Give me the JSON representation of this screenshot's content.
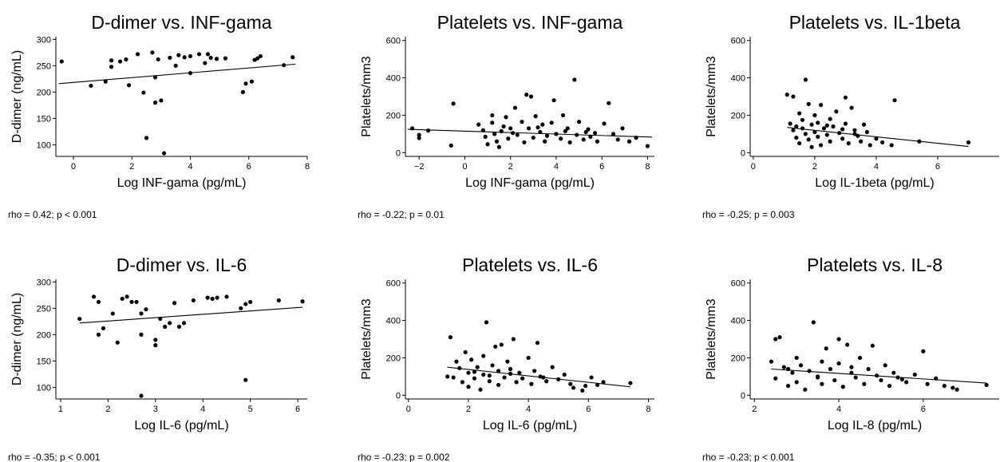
{
  "chart_data": [
    {
      "type": "scatter",
      "title": "D-dimer vs. INF-gama",
      "xlabel": "Log INF-gama (pg/mL)",
      "ylabel": "D-dimer (ng/mL)",
      "xlim": [
        -0.6,
        8.0
      ],
      "ylim": [
        78,
        305
      ],
      "xticks": [
        0,
        2,
        4,
        6,
        8
      ],
      "yticks": [
        100,
        150,
        200,
        250,
        300
      ],
      "fit": [
        [
          -0.5,
          216
        ],
        [
          7.6,
          253
        ]
      ],
      "annotation": "rho = 0.42; p < 0.001",
      "points": [
        [
          -0.4,
          258
        ],
        [
          0.6,
          212
        ],
        [
          1.1,
          220
        ],
        [
          1.3,
          248
        ],
        [
          1.3,
          260
        ],
        [
          1.6,
          258
        ],
        [
          1.8,
          262
        ],
        [
          1.9,
          213
        ],
        [
          2.2,
          272
        ],
        [
          2.4,
          199
        ],
        [
          2.5,
          113
        ],
        [
          2.7,
          275
        ],
        [
          2.8,
          228
        ],
        [
          2.9,
          262
        ],
        [
          2.8,
          180
        ],
        [
          3.0,
          184
        ],
        [
          3.1,
          84
        ],
        [
          3.3,
          265
        ],
        [
          3.5,
          250
        ],
        [
          3.6,
          270
        ],
        [
          3.8,
          266
        ],
        [
          4.0,
          268
        ],
        [
          4.0,
          236
        ],
        [
          4.3,
          272
        ],
        [
          4.5,
          255
        ],
        [
          4.6,
          272
        ],
        [
          4.7,
          265
        ],
        [
          4.9,
          263
        ],
        [
          5.2,
          264
        ],
        [
          5.8,
          200
        ],
        [
          5.9,
          216
        ],
        [
          6.1,
          220
        ],
        [
          6.2,
          261
        ],
        [
          6.3,
          264
        ],
        [
          6.4,
          268
        ],
        [
          7.2,
          251
        ],
        [
          7.5,
          266
        ]
      ]
    },
    {
      "type": "scatter",
      "title": "Platelets vs. INF-gama",
      "xlabel": "Log INF-gama (pg/mL)",
      "ylabel": "Platelets/mm3",
      "xlim": [
        -2.6,
        8.3
      ],
      "ylim": [
        -20,
        620
      ],
      "xticks": [
        -2,
        0,
        2,
        4,
        6,
        8
      ],
      "yticks": [
        0,
        200,
        400,
        600
      ],
      "fit": [
        [
          -2.5,
          125
        ],
        [
          8.2,
          83
        ]
      ],
      "annotation": "rho = -0.22; p = 0.01",
      "points": [
        [
          -2.3,
          130
        ],
        [
          -2.0,
          78
        ],
        [
          -2.0,
          95
        ],
        [
          -1.6,
          118
        ],
        [
          -0.5,
          262
        ],
        [
          -0.6,
          38
        ],
        [
          0.6,
          150
        ],
        [
          0.8,
          120
        ],
        [
          0.9,
          85
        ],
        [
          1.0,
          45
        ],
        [
          1.2,
          200
        ],
        [
          1.2,
          160
        ],
        [
          1.3,
          100
        ],
        [
          1.4,
          60
        ],
        [
          1.5,
          30
        ],
        [
          1.7,
          140
        ],
        [
          1.8,
          190
        ],
        [
          1.9,
          75
        ],
        [
          2.0,
          130
        ],
        [
          2.2,
          240
        ],
        [
          2.3,
          95
        ],
        [
          2.5,
          165
        ],
        [
          2.6,
          55
        ],
        [
          2.7,
          310
        ],
        [
          2.8,
          130
        ],
        [
          2.9,
          300
        ],
        [
          3.0,
          80
        ],
        [
          3.1,
          195
        ],
        [
          3.3,
          110
        ],
        [
          3.4,
          150
        ],
        [
          3.5,
          60
        ],
        [
          3.6,
          90
        ],
        [
          3.8,
          160
        ],
        [
          3.9,
          280
        ],
        [
          4.0,
          100
        ],
        [
          4.2,
          75
        ],
        [
          4.3,
          200
        ],
        [
          4.5,
          130
        ],
        [
          4.6,
          55
        ],
        [
          4.8,
          390
        ],
        [
          4.9,
          95
        ],
        [
          5.0,
          165
        ],
        [
          5.2,
          70
        ],
        [
          5.4,
          125
        ],
        [
          5.5,
          85
        ],
        [
          5.7,
          105
        ],
        [
          5.8,
          60
        ],
        [
          6.1,
          155
        ],
        [
          6.3,
          265
        ],
        [
          6.5,
          100
        ],
        [
          6.7,
          70
        ],
        [
          6.9,
          130
        ],
        [
          7.2,
          60
        ],
        [
          7.5,
          80
        ],
        [
          8.0,
          35
        ],
        [
          1.6,
          115
        ],
        [
          2.1,
          105
        ],
        [
          3.2,
          135
        ],
        [
          4.4,
          115
        ],
        [
          5.3,
          110
        ]
      ]
    },
    {
      "type": "scatter",
      "title": "Platelets vs. IL-1beta",
      "xlabel": "Log IL-1beta (pg/mL)",
      "ylabel": "Platelets/mm3",
      "xlim": [
        -0.1,
        8.0
      ],
      "ylim": [
        -20,
        620
      ],
      "xticks": [
        0,
        2,
        4,
        6
      ],
      "yticks": [
        0,
        200,
        400,
        600
      ],
      "fit": [
        [
          1.1,
          135
        ],
        [
          7.0,
          33
        ]
      ],
      "annotation": "rho = -0.25; p = 0.003",
      "points": [
        [
          1.1,
          310
        ],
        [
          1.2,
          155
        ],
        [
          1.3,
          300
        ],
        [
          1.3,
          120
        ],
        [
          1.4,
          80
        ],
        [
          1.5,
          210
        ],
        [
          1.5,
          50
        ],
        [
          1.6,
          175
        ],
        [
          1.6,
          130
        ],
        [
          1.7,
          100
        ],
        [
          1.7,
          390
        ],
        [
          1.8,
          260
        ],
        [
          1.8,
          70
        ],
        [
          1.9,
          150
        ],
        [
          1.9,
          30
        ],
        [
          2.0,
          200
        ],
        [
          2.0,
          110
        ],
        [
          2.1,
          85
        ],
        [
          2.1,
          160
        ],
        [
          2.2,
          255
        ],
        [
          2.2,
          40
        ],
        [
          2.3,
          130
        ],
        [
          2.4,
          95
        ],
        [
          2.5,
          180
        ],
        [
          2.5,
          60
        ],
        [
          2.6,
          140
        ],
        [
          2.7,
          220
        ],
        [
          2.8,
          105
        ],
        [
          2.9,
          75
        ],
        [
          3.0,
          295
        ],
        [
          3.0,
          155
        ],
        [
          3.1,
          50
        ],
        [
          3.2,
          240
        ],
        [
          3.3,
          120
        ],
        [
          3.4,
          90
        ],
        [
          3.5,
          60
        ],
        [
          3.6,
          150
        ],
        [
          3.7,
          110
        ],
        [
          3.8,
          40
        ],
        [
          4.0,
          75
        ],
        [
          4.2,
          55
        ],
        [
          4.5,
          40
        ],
        [
          4.6,
          280
        ],
        [
          5.4,
          60
        ],
        [
          7.0,
          55
        ],
        [
          1.4,
          140
        ],
        [
          2.4,
          145
        ],
        [
          2.9,
          125
        ],
        [
          3.3,
          100
        ]
      ]
    },
    {
      "type": "scatter",
      "title": "D-dimer vs. IL-6",
      "xlabel": "Log IL-6 (pg/mL)",
      "ylabel": "D-dimer (ng/mL)",
      "xlim": [
        0.9,
        6.2
      ],
      "ylim": [
        78,
        305
      ],
      "xticks": [
        1,
        2,
        3,
        4,
        5,
        6
      ],
      "yticks": [
        100,
        150,
        200,
        250,
        300
      ],
      "fit": [
        [
          1.4,
          222
        ],
        [
          6.1,
          252
        ]
      ],
      "annotation": "rho = -0.35; p < 0.001",
      "points": [
        [
          1.4,
          230
        ],
        [
          1.7,
          272
        ],
        [
          1.8,
          200
        ],
        [
          1.8,
          262
        ],
        [
          1.9,
          212
        ],
        [
          2.1,
          240
        ],
        [
          2.2,
          185
        ],
        [
          2.3,
          268
        ],
        [
          2.4,
          272
        ],
        [
          2.5,
          262
        ],
        [
          2.6,
          262
        ],
        [
          2.7,
          240
        ],
        [
          2.7,
          200
        ],
        [
          2.8,
          248
        ],
        [
          2.7,
          84
        ],
        [
          3.0,
          180
        ],
        [
          3.0,
          190
        ],
        [
          3.1,
          230
        ],
        [
          3.2,
          215
        ],
        [
          3.3,
          222
        ],
        [
          3.4,
          260
        ],
        [
          3.5,
          215
        ],
        [
          3.6,
          222
        ],
        [
          3.8,
          265
        ],
        [
          4.1,
          270
        ],
        [
          4.2,
          268
        ],
        [
          4.3,
          270
        ],
        [
          4.5,
          272
        ],
        [
          4.8,
          250
        ],
        [
          4.9,
          258
        ],
        [
          4.9,
          114
        ],
        [
          5.0,
          262
        ],
        [
          5.6,
          265
        ],
        [
          6.1,
          263
        ]
      ]
    },
    {
      "type": "scatter",
      "title": "Platelets vs. IL-6",
      "xlabel": "Log IL-6 (pg/mL)",
      "ylabel": "Platelets/mm3",
      "xlim": [
        -0.1,
        8.2
      ],
      "ylim": [
        -20,
        620
      ],
      "xticks": [
        0,
        2,
        4,
        6,
        8
      ],
      "yticks": [
        0,
        200,
        400,
        600
      ],
      "fit": [
        [
          1.3,
          150
        ],
        [
          7.4,
          45
        ]
      ],
      "annotation": "rho = -0.23; p = 0.002",
      "points": [
        [
          1.3,
          100
        ],
        [
          1.4,
          310
        ],
        [
          1.6,
          180
        ],
        [
          1.7,
          145
        ],
        [
          1.8,
          70
        ],
        [
          1.9,
          230
        ],
        [
          2.0,
          120
        ],
        [
          2.0,
          45
        ],
        [
          2.1,
          190
        ],
        [
          2.2,
          90
        ],
        [
          2.3,
          150
        ],
        [
          2.4,
          30
        ],
        [
          2.5,
          210
        ],
        [
          2.5,
          110
        ],
        [
          2.6,
          390
        ],
        [
          2.7,
          75
        ],
        [
          2.8,
          160
        ],
        [
          2.9,
          260
        ],
        [
          3.0,
          130
        ],
        [
          3.0,
          55
        ],
        [
          3.1,
          270
        ],
        [
          3.2,
          95
        ],
        [
          3.3,
          180
        ],
        [
          3.4,
          140
        ],
        [
          3.5,
          300
        ],
        [
          3.6,
          70
        ],
        [
          3.7,
          120
        ],
        [
          3.8,
          90
        ],
        [
          4.0,
          200
        ],
        [
          4.1,
          60
        ],
        [
          4.2,
          130
        ],
        [
          4.3,
          280
        ],
        [
          4.4,
          100
        ],
        [
          4.6,
          75
        ],
        [
          4.8,
          150
        ],
        [
          5.0,
          85
        ],
        [
          5.2,
          110
        ],
        [
          5.4,
          60
        ],
        [
          5.5,
          40
        ],
        [
          5.8,
          25
        ],
        [
          5.9,
          50
        ],
        [
          6.1,
          95
        ],
        [
          6.3,
          55
        ],
        [
          6.5,
          70
        ],
        [
          7.4,
          65
        ],
        [
          1.5,
          95
        ],
        [
          2.2,
          125
        ],
        [
          2.7,
          105
        ],
        [
          3.4,
          115
        ],
        [
          4.5,
          95
        ]
      ]
    },
    {
      "type": "scatter",
      "title": "Platelets vs. IL-8",
      "xlabel": "Log IL-8 (pg/mL)",
      "ylabel": "Platelets/mm3",
      "xlim": [
        1.9,
        7.8
      ],
      "ylim": [
        -20,
        620
      ],
      "xticks": [
        2,
        4,
        6
      ],
      "yticks": [
        0,
        200,
        400,
        600
      ],
      "fit": [
        [
          2.4,
          140
        ],
        [
          7.5,
          65
        ]
      ],
      "annotation": "rho = -0.23; p < 0.001",
      "points": [
        [
          2.4,
          180
        ],
        [
          2.5,
          300
        ],
        [
          2.5,
          90
        ],
        [
          2.6,
          310
        ],
        [
          2.7,
          150
        ],
        [
          2.8,
          50
        ],
        [
          2.9,
          120
        ],
        [
          3.0,
          200
        ],
        [
          3.0,
          70
        ],
        [
          3.1,
          160
        ],
        [
          3.2,
          30
        ],
        [
          3.3,
          130
        ],
        [
          3.4,
          390
        ],
        [
          3.5,
          100
        ],
        [
          3.6,
          180
        ],
        [
          3.6,
          60
        ],
        [
          3.7,
          250
        ],
        [
          3.8,
          140
        ],
        [
          3.9,
          80
        ],
        [
          4.0,
          300
        ],
        [
          4.0,
          170
        ],
        [
          4.1,
          45
        ],
        [
          4.2,
          270
        ],
        [
          4.3,
          120
        ],
        [
          4.4,
          95
        ],
        [
          4.5,
          200
        ],
        [
          4.6,
          60
        ],
        [
          4.7,
          140
        ],
        [
          4.8,
          265
        ],
        [
          4.9,
          105
        ],
        [
          5.0,
          80
        ],
        [
          5.1,
          160
        ],
        [
          5.2,
          50
        ],
        [
          5.3,
          120
        ],
        [
          5.4,
          95
        ],
        [
          5.6,
          70
        ],
        [
          5.8,
          110
        ],
        [
          6.0,
          235
        ],
        [
          6.1,
          60
        ],
        [
          6.3,
          90
        ],
        [
          6.5,
          50
        ],
        [
          6.7,
          40
        ],
        [
          6.8,
          30
        ],
        [
          7.5,
          55
        ],
        [
          2.8,
          140
        ],
        [
          3.5,
          95
        ],
        [
          4.3,
          150
        ],
        [
          5.5,
          85
        ]
      ]
    }
  ]
}
